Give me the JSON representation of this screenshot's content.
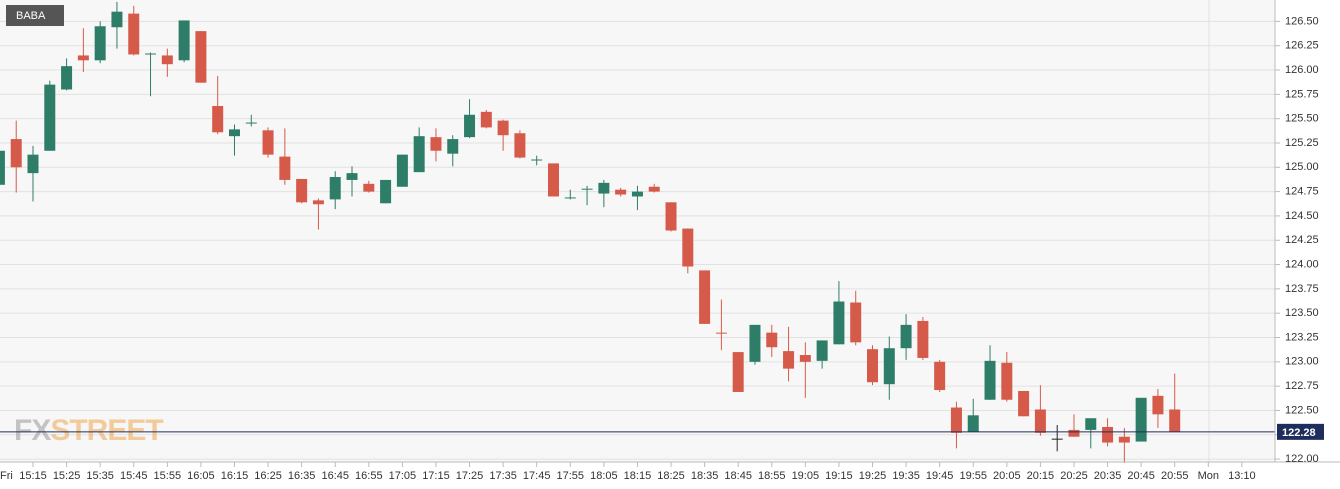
{
  "chart_data": {
    "type": "candlestick",
    "series": [
      {
        "name": "BABA",
        "open": [
          124.82,
          125.29,
          124.94,
          125.17,
          125.8,
          126.15,
          126.1,
          126.44,
          126.58,
          126.16,
          126.15,
          126.1,
          126.4,
          125.63,
          125.32,
          125.45,
          125.38,
          125.11,
          124.88,
          124.66,
          124.67,
          124.87,
          124.83,
          124.63,
          124.8,
          124.95,
          125.31,
          125.14,
          125.31,
          125.57,
          125.48,
          125.35,
          125.07,
          125.04,
          124.68,
          124.77,
          124.73,
          124.77,
          124.7,
          124.8,
          124.64,
          124.37,
          123.94,
          123.3,
          123.1,
          123.0,
          123.3,
          123.11,
          123.07,
          123.01,
          123.18,
          123.61,
          123.13,
          122.77,
          123.14,
          123.42,
          123.0,
          122.53,
          122.28,
          122.61,
          122.99,
          122.7,
          122.51,
          122.21,
          122.3,
          122.3,
          122.33,
          122.23,
          122.18,
          122.65,
          122.51,
          null,
          null,
          null,
          null
        ],
        "high": [
          125.53,
          125.48,
          125.22,
          125.89,
          126.12,
          126.43,
          126.5,
          126.7,
          126.66,
          126.18,
          126.22,
          126.51,
          126.4,
          125.94,
          125.44,
          125.54,
          125.41,
          125.4,
          124.88,
          124.68,
          124.96,
          125.01,
          124.86,
          124.87,
          125.13,
          125.41,
          125.4,
          125.33,
          125.7,
          125.59,
          125.49,
          125.38,
          125.12,
          125.04,
          124.77,
          124.81,
          124.87,
          124.79,
          124.81,
          124.83,
          124.64,
          124.37,
          123.94,
          123.64,
          123.1,
          123.38,
          123.38,
          123.36,
          123.2,
          123.22,
          123.83,
          123.73,
          123.17,
          123.26,
          123.49,
          123.46,
          123.02,
          122.59,
          122.62,
          123.17,
          123.1,
          122.7,
          122.76,
          122.35,
          122.46,
          122.42,
          122.42,
          122.32,
          122.63,
          122.72,
          122.88,
          null,
          null,
          null,
          null
        ],
        "low": [
          124.71,
          124.74,
          124.65,
          125.17,
          125.79,
          125.98,
          126.07,
          126.22,
          126.15,
          125.73,
          125.93,
          126.08,
          125.87,
          125.34,
          125.12,
          125.42,
          125.1,
          124.82,
          124.63,
          124.36,
          124.57,
          124.7,
          124.74,
          124.63,
          124.8,
          124.95,
          125.06,
          125.01,
          125.3,
          125.4,
          125.17,
          125.09,
          125.02,
          124.7,
          124.67,
          124.61,
          124.59,
          124.7,
          124.56,
          124.74,
          124.34,
          123.91,
          123.39,
          123.12,
          122.69,
          122.97,
          123.05,
          122.8,
          122.63,
          122.93,
          123.18,
          123.17,
          122.76,
          122.61,
          123.02,
          123.02,
          122.69,
          122.11,
          122.28,
          122.61,
          122.59,
          122.44,
          122.24,
          122.08,
          122.23,
          122.11,
          122.13,
          121.96,
          122.18,
          122.32,
          122.28,
          null,
          null,
          null,
          null
        ],
        "close": [
          125.17,
          125.0,
          125.13,
          125.85,
          126.04,
          126.1,
          126.45,
          126.6,
          126.16,
          126.17,
          126.06,
          126.51,
          125.87,
          125.36,
          125.39,
          125.46,
          125.13,
          124.87,
          124.64,
          124.62,
          124.9,
          124.94,
          124.75,
          124.87,
          125.13,
          125.32,
          125.17,
          125.29,
          125.54,
          125.41,
          125.33,
          125.1,
          125.08,
          124.7,
          124.69,
          124.78,
          124.84,
          124.72,
          124.75,
          124.75,
          124.35,
          123.98,
          123.39,
          123.29,
          122.69,
          123.38,
          123.15,
          122.93,
          123.0,
          123.22,
          123.62,
          123.2,
          122.79,
          123.14,
          123.38,
          123.04,
          122.71,
          122.27,
          122.45,
          123.01,
          122.61,
          122.44,
          122.27,
          122.21,
          122.23,
          122.42,
          122.17,
          122.17,
          122.63,
          122.46,
          122.28,
          null,
          null,
          null,
          null
        ]
      }
    ],
    "categories": [
      "Fri",
      null,
      "15:15",
      null,
      "15:25",
      null,
      "15:35",
      null,
      "15:45",
      null,
      "15:55",
      null,
      "16:05",
      null,
      "16:15",
      null,
      "16:25",
      null,
      "16:35",
      null,
      "16:45",
      null,
      "16:55",
      null,
      "17:05",
      null,
      "17:15",
      null,
      "17:25",
      null,
      "17:35",
      null,
      "17:45",
      null,
      "17:55",
      null,
      "18:05",
      null,
      "18:15",
      null,
      "18:25",
      null,
      "18:35",
      null,
      "18:45",
      null,
      "18:55",
      null,
      "19:05",
      null,
      "19:15",
      null,
      "19:25",
      null,
      "19:35",
      null,
      "19:45",
      null,
      "19:55",
      null,
      "20:05",
      null,
      "20:15",
      null,
      "20:25",
      null,
      "20:35",
      null,
      "20:45",
      null,
      "20:55",
      null,
      "Mon",
      null,
      "13:10"
    ],
    "up_color": "#2e7d68",
    "down_color": "#d65a4a",
    "doji_color": "#222222",
    "ylim": [
      121.97,
      126.72
    ],
    "yticks": [
      {
        "value": 122.0,
        "label": "122.00"
      },
      {
        "value": 122.25,
        "label": "122.25"
      },
      {
        "value": 122.5,
        "label": "122.50"
      },
      {
        "value": 122.75,
        "label": "122.75"
      },
      {
        "value": 123.0,
        "label": "123.00"
      },
      {
        "value": 123.25,
        "label": "123.25"
      },
      {
        "value": 123.5,
        "label": "123.50"
      },
      {
        "value": 123.75,
        "label": "123.75"
      },
      {
        "value": 124.0,
        "label": "124.00"
      },
      {
        "value": 124.25,
        "label": "124.25"
      },
      {
        "value": 124.5,
        "label": "124.50"
      },
      {
        "value": 124.75,
        "label": "124.75"
      },
      {
        "value": 125.0,
        "label": "125.00"
      },
      {
        "value": 125.25,
        "label": "125.25"
      },
      {
        "value": 125.5,
        "label": "125.50"
      },
      {
        "value": 125.75,
        "label": "125.75"
      },
      {
        "value": 126.0,
        "label": "126.00"
      },
      {
        "value": 126.25,
        "label": "126.25"
      },
      {
        "value": 126.5,
        "label": "126.50"
      }
    ],
    "grid": true,
    "last_price": 122.28,
    "last_price_color": "#1f2d5c",
    "watermark": [
      "FX",
      "STREET"
    ]
  }
}
